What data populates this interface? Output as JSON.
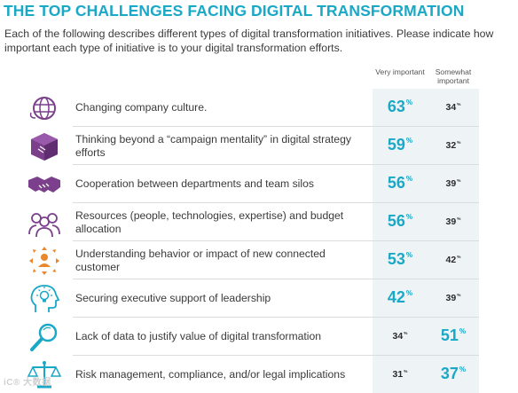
{
  "header": {
    "title": "THE TOP CHALLENGES FACING DIGITAL TRANSFORMATION",
    "subtitle": "Each of the following describes different types of digital transformation initiatives. Please indicate how important each type of initiative is to your digital transformation efforts."
  },
  "columns": {
    "very_important": "Very important",
    "somewhat_important": "Somewhat important"
  },
  "colors": {
    "accent": "#1aa8c7",
    "icon_purple": "#7b3f8c",
    "icon_orange": "#e8872b",
    "icon_teal": "#1aa8c7"
  },
  "percent_sign": "%",
  "watermark": "iC® 大数据",
  "chart_data": {
    "type": "table",
    "title": "THE TOP CHALLENGES FACING DIGITAL TRANSFORMATION",
    "columns": [
      "Very important",
      "Somewhat important"
    ],
    "rows": [
      {
        "label": "Changing company culture.",
        "very_important": 63,
        "somewhat_important": 34,
        "icon": "globe-icon",
        "highlight": "very_important"
      },
      {
        "label": "Thinking beyond a “campaign mentality” in digital strategy efforts",
        "very_important": 59,
        "somewhat_important": 32,
        "icon": "box-icon",
        "highlight": "very_important"
      },
      {
        "label": "Cooperation between departments and team silos",
        "very_important": 56,
        "somewhat_important": 39,
        "icon": "handshake-icon",
        "highlight": "very_important"
      },
      {
        "label": "Resources (people, technologies, expertise) and budget allocation",
        "very_important": 56,
        "somewhat_important": 39,
        "icon": "people-icon",
        "highlight": "very_important"
      },
      {
        "label": "Understanding behavior or impact of new connected customer",
        "very_important": 53,
        "somewhat_important": 42,
        "icon": "connected-person-icon",
        "highlight": "very_important"
      },
      {
        "label": "Securing executive support of leadership",
        "very_important": 42,
        "somewhat_important": 39,
        "icon": "lightbulb-head-icon",
        "highlight": "very_important"
      },
      {
        "label": "Lack of data to justify value of digital transformation",
        "very_important": 34,
        "somewhat_important": 51,
        "icon": "magnifier-icon",
        "highlight": "somewhat_important"
      },
      {
        "label": "Risk management, compliance, and/or legal implications",
        "very_important": 31,
        "somewhat_important": 37,
        "icon": "scales-icon",
        "highlight": "somewhat_important"
      }
    ]
  }
}
